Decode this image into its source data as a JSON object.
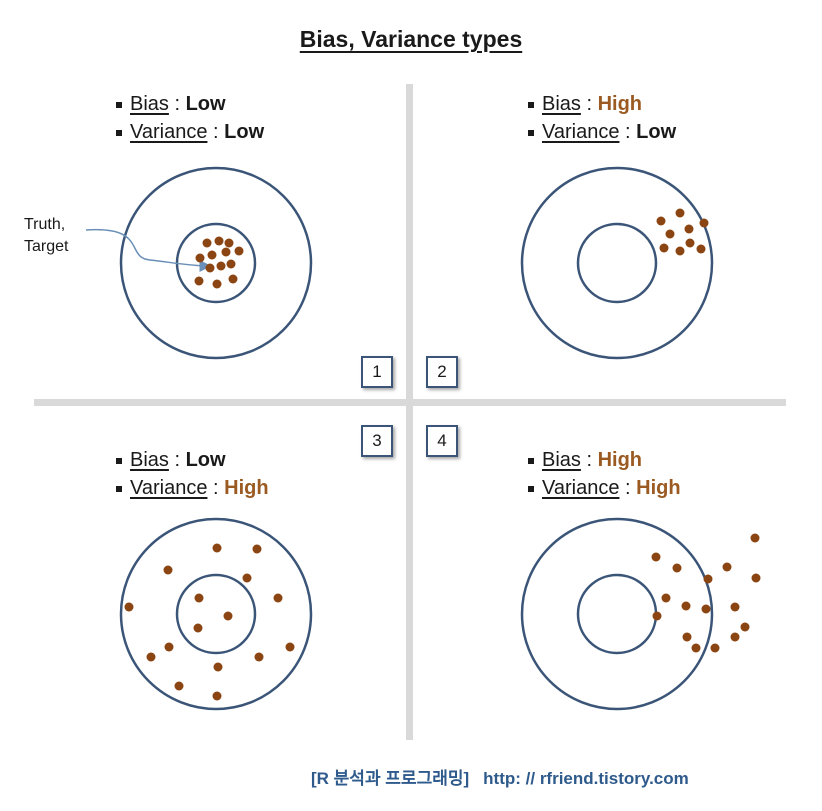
{
  "title": "Bias, Variance types",
  "panels": [
    {
      "number": "1",
      "bias_label": "Bias",
      "bias_value": "Low",
      "variance_label": "Variance",
      "variance_value": "Low"
    },
    {
      "number": "2",
      "bias_label": "Bias",
      "bias_value": "High",
      "variance_label": "Variance",
      "variance_value": "Low"
    },
    {
      "number": "3",
      "bias_label": "Bias",
      "bias_value": "Low",
      "variance_label": "Variance",
      "variance_value": "High"
    },
    {
      "number": "4",
      "bias_label": "Bias",
      "bias_value": "High",
      "variance_label": "Variance",
      "variance_value": "High"
    }
  ],
  "separator": ":",
  "annotation": {
    "line1": "Truth,",
    "line2": "Target"
  },
  "footer": {
    "blog": "[R 분석과 프로그래밍]",
    "url": "http: // rfriend.tistory.com"
  },
  "colors": {
    "circle": "#3b5578",
    "dot": "#8b4513",
    "high_value": "#9a5a22",
    "footer": "#2e5a8c"
  }
}
